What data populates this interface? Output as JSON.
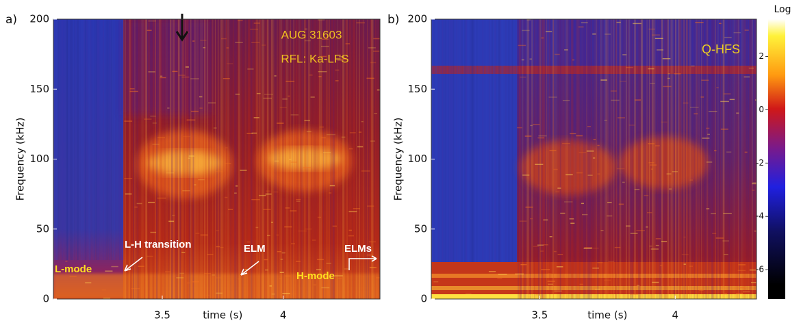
{
  "chart_data": [
    {
      "type": "spectrogram",
      "panel_label": "a)",
      "xlabel": "time (s)",
      "ylabel": "Frequency  (kHz)",
      "xlim": [
        3.05,
        4.4
      ],
      "xticks": [
        3.5,
        4.0
      ],
      "ylim": [
        0,
        200
      ],
      "yticks": [
        0,
        50,
        100,
        150,
        200
      ],
      "annotations": [
        "AUG 31603",
        "RFL: Ka-LFS",
        "L-mode",
        "L-H transition",
        "ELM",
        "ELMs",
        "H-mode"
      ]
    },
    {
      "type": "spectrogram",
      "panel_label": "b)",
      "xlabel": "time (s)",
      "ylabel": "Frequency  (kHz)",
      "xlim": [
        3.1,
        4.3
      ],
      "xticks": [
        3.5,
        4.0
      ],
      "ylim": [
        0,
        200
      ],
      "yticks": [
        0,
        50,
        100,
        150,
        200
      ],
      "annotations": [
        "Q-HFS"
      ]
    },
    {
      "type": "colorbar",
      "title": "Log",
      "ylim": [
        -7.1,
        3.4
      ],
      "yticks": [
        2,
        0,
        -2,
        -4,
        -6
      ]
    }
  ]
}
